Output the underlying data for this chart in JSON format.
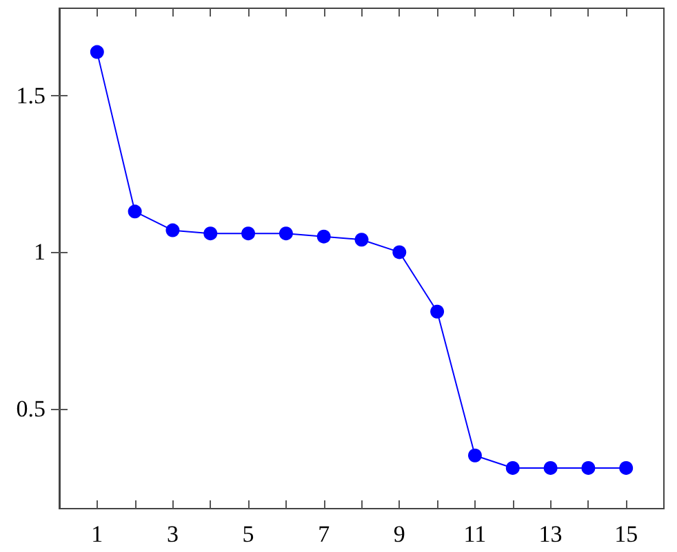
{
  "chart_data": {
    "type": "line",
    "x": [
      1,
      2,
      3,
      4,
      5,
      6,
      7,
      8,
      9,
      10,
      11,
      12,
      13,
      14,
      15
    ],
    "series": [
      {
        "color": "#0000ff",
        "values": [
          1.64,
          1.13,
          1.07,
          1.06,
          1.06,
          1.06,
          1.05,
          1.04,
          1.0,
          0.81,
          0.35,
          0.31,
          0.31,
          0.31,
          0.31
        ]
      }
    ],
    "xlim": [
      0,
      16
    ],
    "ylim": [
      0.18,
      1.78
    ],
    "xticks": [
      1,
      {
        "value": 2,
        "label": null
      },
      3,
      {
        "value": 4,
        "label": null
      },
      5,
      {
        "value": 6,
        "label": null
      },
      7,
      {
        "value": 8,
        "label": null
      },
      9,
      {
        "value": 10,
        "label": null
      },
      11,
      {
        "value": 12,
        "label": null
      },
      13,
      {
        "value": 14,
        "label": null
      },
      15
    ],
    "yticks": [
      0.5,
      1,
      1.5
    ],
    "marker": "circle",
    "line_style": "solid"
  }
}
